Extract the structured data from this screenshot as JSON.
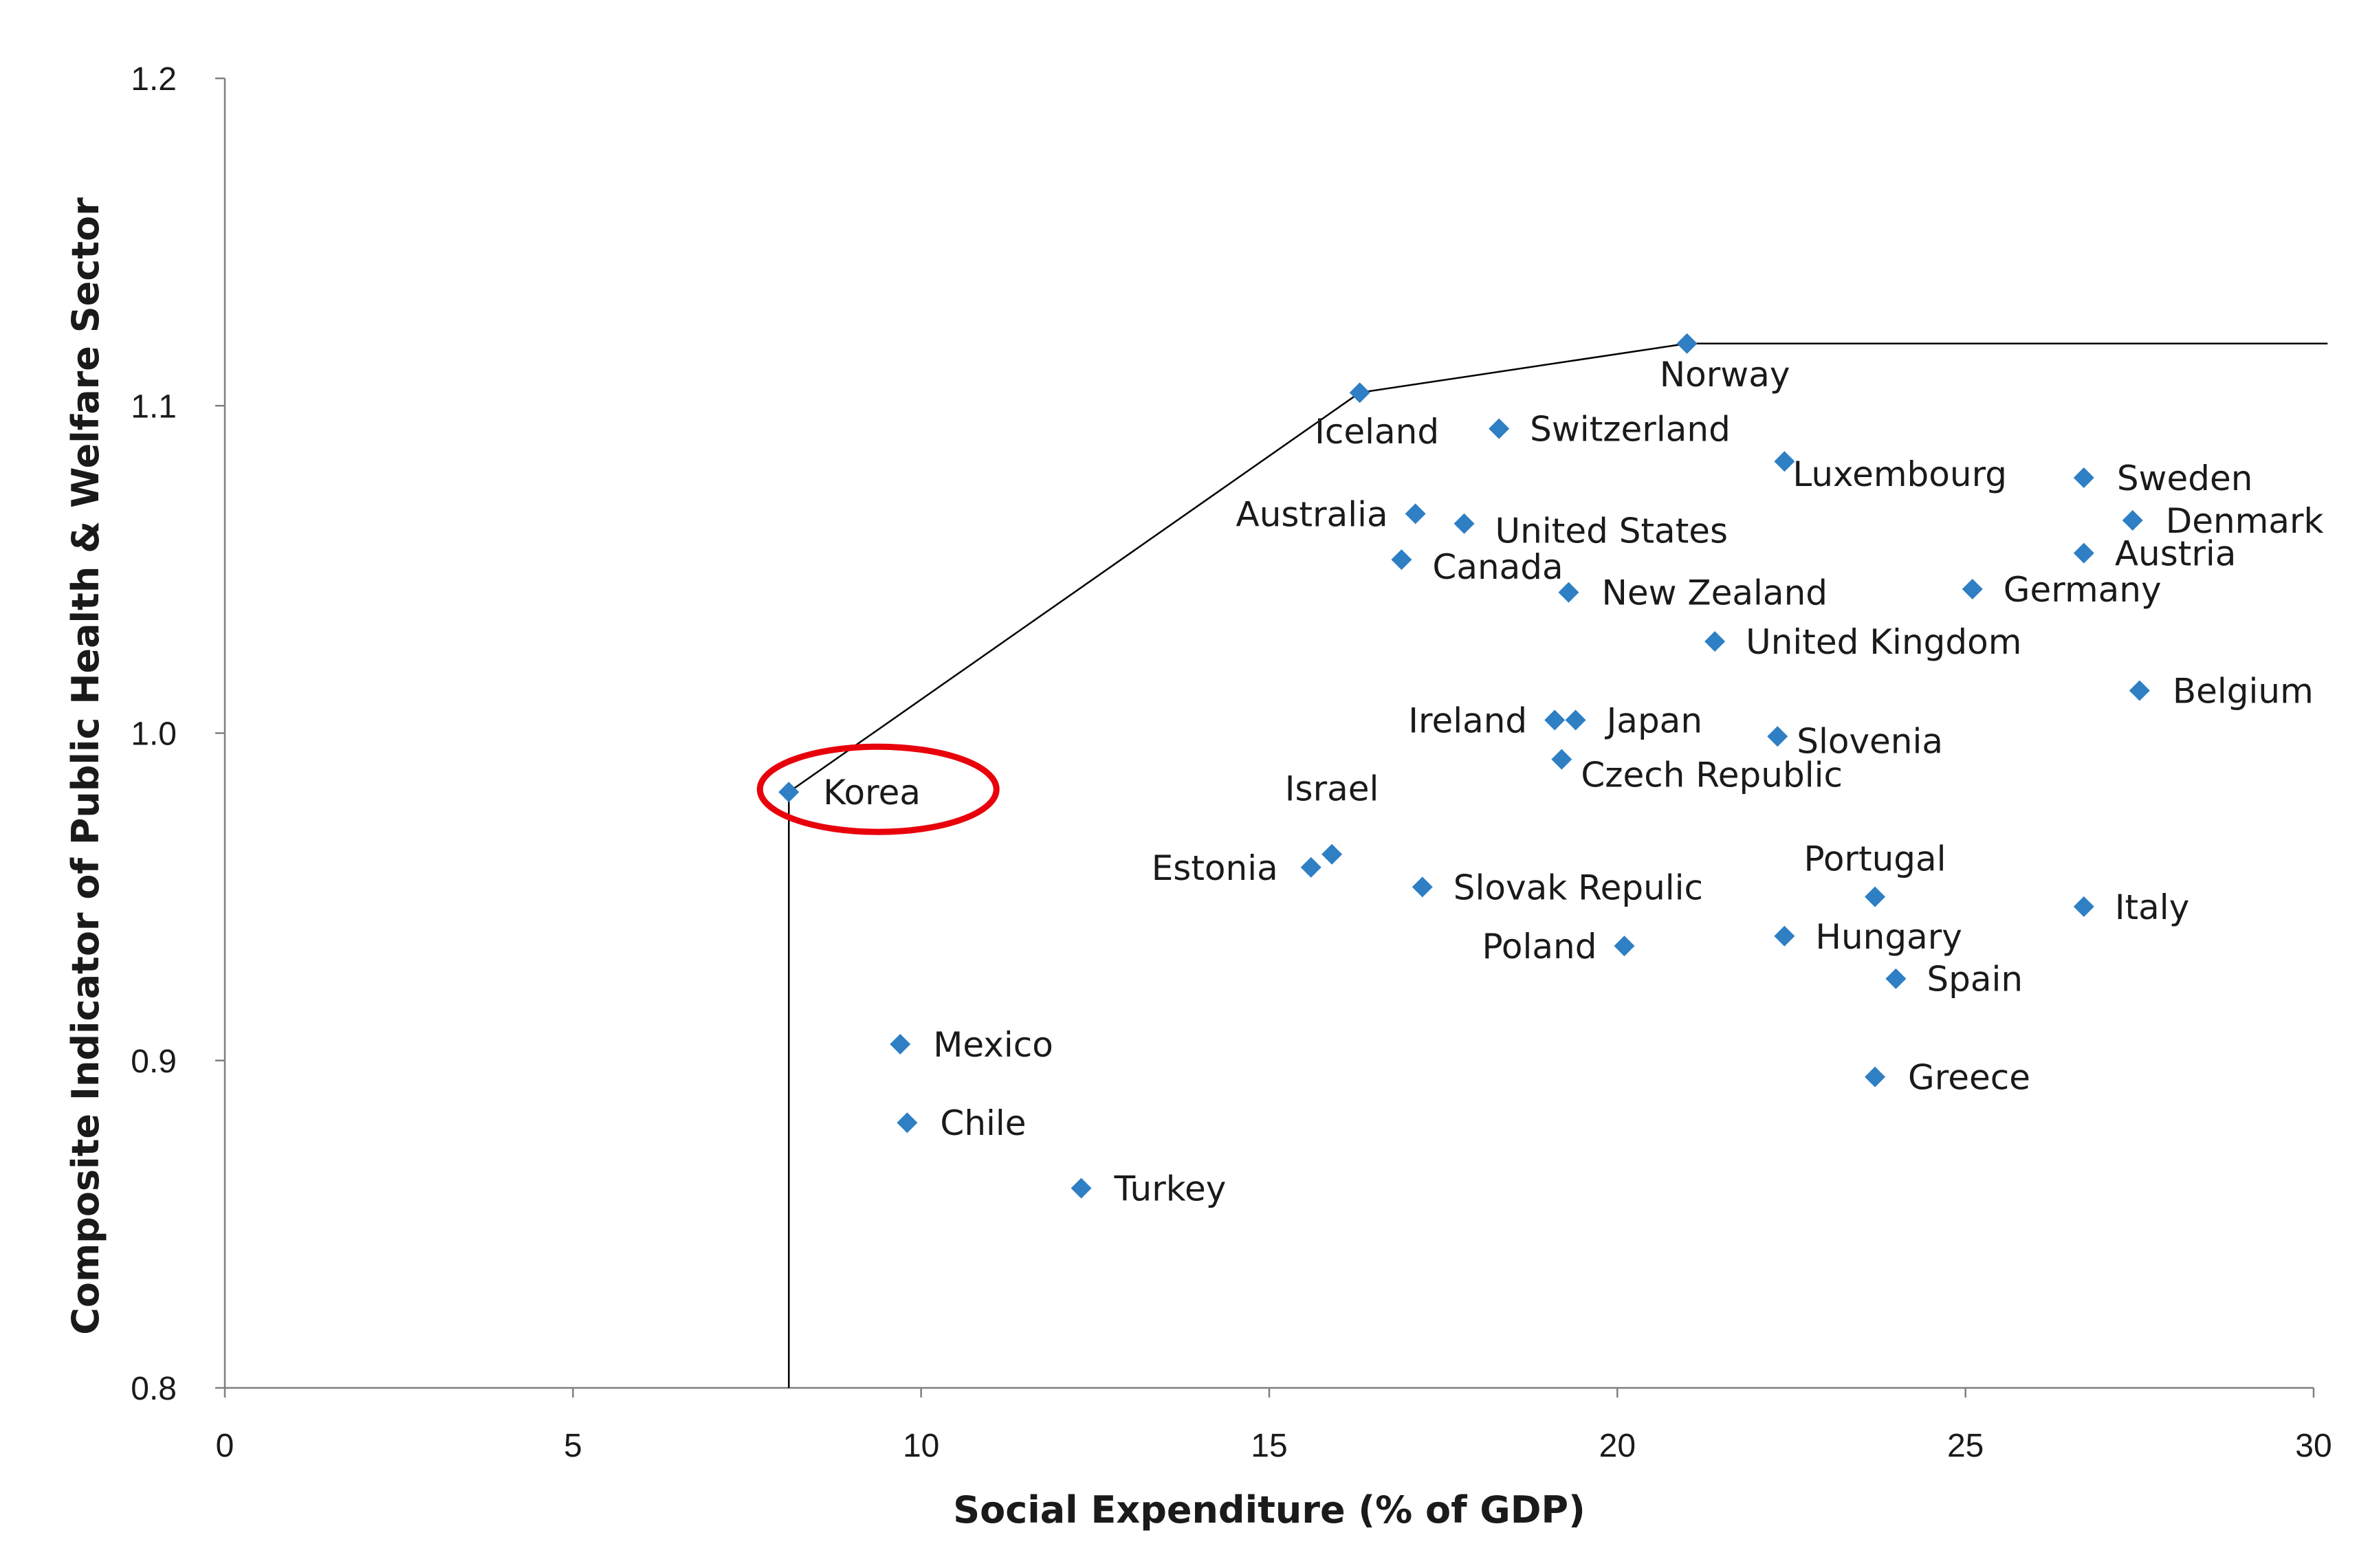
{
  "chart_data": {
    "type": "scatter",
    "title": "",
    "xlabel": "Social Expenditure (% of GDP)",
    "ylabel": "Composite Indicator of Public Health & Welfare Sector",
    "xlim": [
      0,
      30
    ],
    "ylim": [
      0.8,
      1.2
    ],
    "xticks": [
      0,
      5,
      10,
      15,
      20,
      25,
      30
    ],
    "yticks": [
      "0.8",
      "0.9",
      "1.0",
      "1.1",
      "1.2"
    ],
    "grid": false,
    "marker_color": "#2e7fc4",
    "highlight_color": "#e8000b",
    "highlighted": "Korea",
    "points": [
      {
        "label": "Korea",
        "x": 8.1,
        "y": 0.982
      },
      {
        "label": "Mexico",
        "x": 9.7,
        "y": 0.905
      },
      {
        "label": "Chile",
        "x": 9.8,
        "y": 0.881
      },
      {
        "label": "Turkey",
        "x": 12.3,
        "y": 0.861
      },
      {
        "label": "Estonia",
        "x": 15.6,
        "y": 0.959
      },
      {
        "label": "Israel",
        "x": 15.9,
        "y": 0.963
      },
      {
        "label": "Iceland",
        "x": 16.3,
        "y": 1.104
      },
      {
        "label": "Australia",
        "x": 17.1,
        "y": 1.067
      },
      {
        "label": "Canada",
        "x": 16.9,
        "y": 1.053
      },
      {
        "label": "Slovak Repulic",
        "x": 17.2,
        "y": 0.953
      },
      {
        "label": "United States",
        "x": 17.8,
        "y": 1.064
      },
      {
        "label": "Switzerland",
        "x": 18.3,
        "y": 1.093
      },
      {
        "label": "Ireland",
        "x": 19.1,
        "y": 1.004
      },
      {
        "label": "Japan",
        "x": 19.4,
        "y": 1.004
      },
      {
        "label": "Czech Republic",
        "x": 19.2,
        "y": 0.992
      },
      {
        "label": "New Zealand",
        "x": 19.3,
        "y": 1.043
      },
      {
        "label": "Poland",
        "x": 20.1,
        "y": 0.935
      },
      {
        "label": "Norway",
        "x": 21.0,
        "y": 1.119
      },
      {
        "label": "United Kingdom",
        "x": 21.4,
        "y": 1.028
      },
      {
        "label": "Slovenia",
        "x": 22.3,
        "y": 0.999
      },
      {
        "label": "Luxembourg",
        "x": 22.4,
        "y": 1.083
      },
      {
        "label": "Hungary",
        "x": 22.4,
        "y": 0.938
      },
      {
        "label": "Portugal",
        "x": 23.7,
        "y": 0.95
      },
      {
        "label": "Greece",
        "x": 23.7,
        "y": 0.895
      },
      {
        "label": "Spain",
        "x": 24.0,
        "y": 0.925
      },
      {
        "label": "Germany",
        "x": 25.1,
        "y": 1.044
      },
      {
        "label": "Sweden",
        "x": 26.7,
        "y": 1.078
      },
      {
        "label": "Austria",
        "x": 26.7,
        "y": 1.055
      },
      {
        "label": "Italy",
        "x": 26.7,
        "y": 0.947
      },
      {
        "label": "Denmark",
        "x": 27.4,
        "y": 1.065
      },
      {
        "label": "Belgium",
        "x": 27.5,
        "y": 1.013
      }
    ],
    "frontier": [
      {
        "x": 8.1,
        "y": 0.8
      },
      {
        "x": 8.1,
        "y": 0.982
      },
      {
        "x": 16.3,
        "y": 1.104
      },
      {
        "x": 21.0,
        "y": 1.119
      },
      {
        "x": 30.2,
        "y": 1.119
      }
    ]
  }
}
